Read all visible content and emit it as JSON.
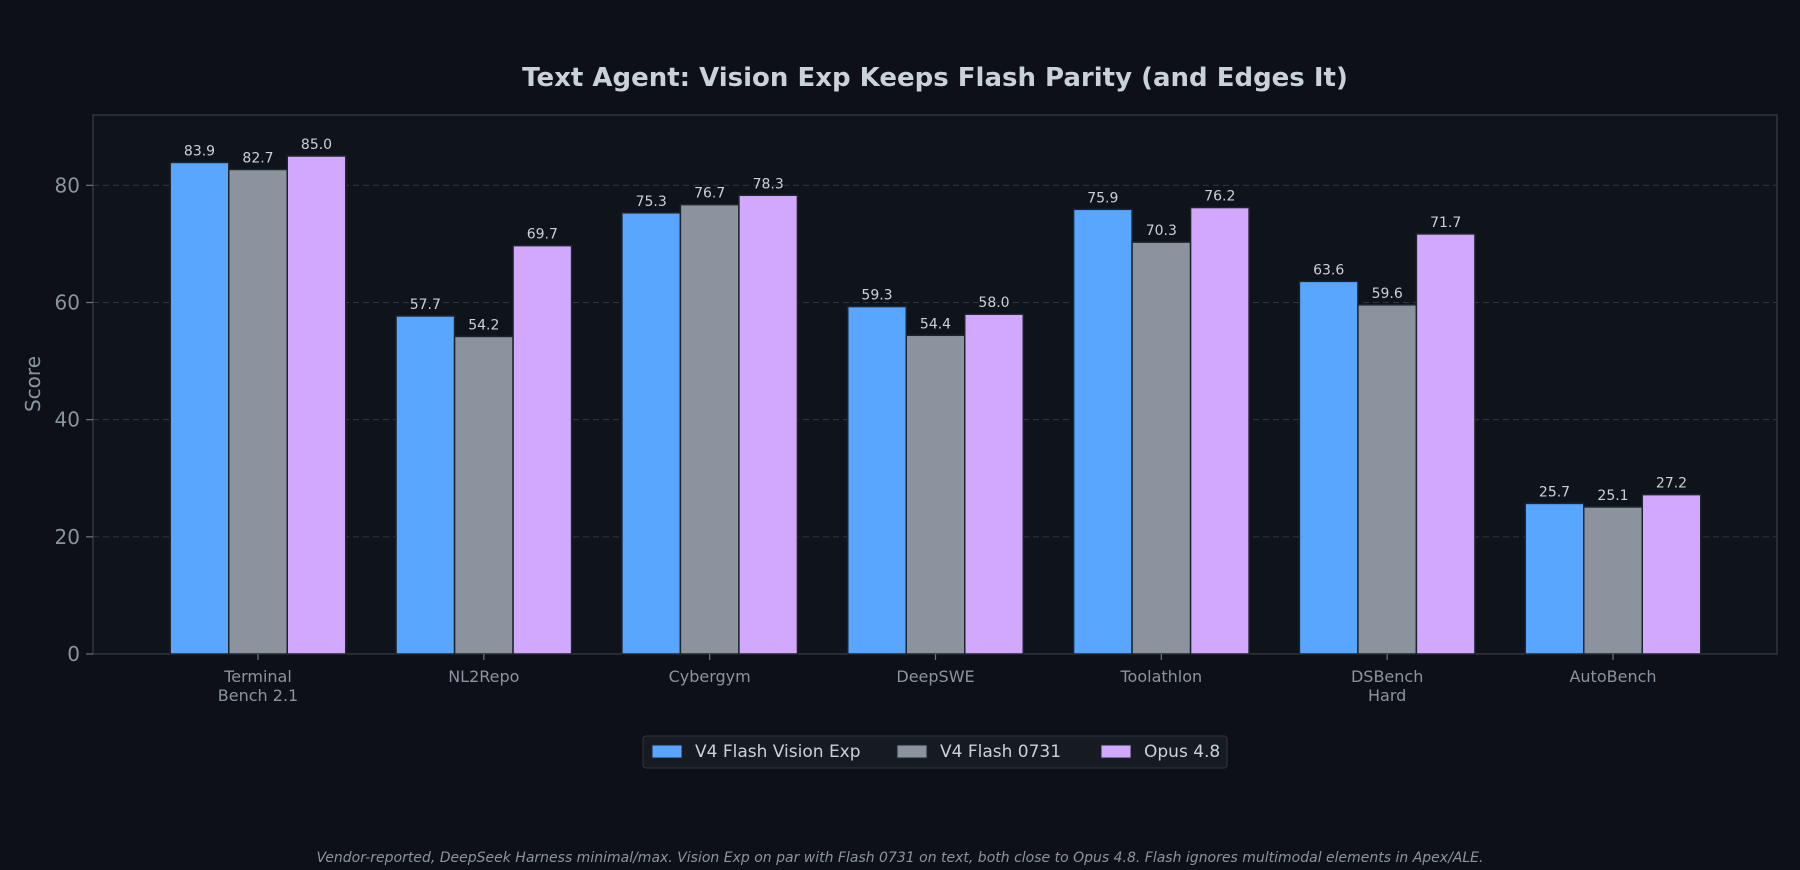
{
  "chart_data": {
    "type": "bar",
    "title": "Text Agent: Vision Exp Keeps Flash Parity (and Edges It)",
    "xlabel": "",
    "ylabel": "Score",
    "ylim": [
      0,
      92
    ],
    "yticks": [
      0,
      20,
      40,
      60,
      80
    ],
    "grid": true,
    "legend_position": "bottom-center",
    "categories": [
      [
        "Terminal",
        "Bench 2.1"
      ],
      [
        "NL2Repo"
      ],
      [
        "Cybergym"
      ],
      [
        "DeepSWE"
      ],
      [
        "Toolathlon"
      ],
      [
        "DSBench",
        "Hard"
      ],
      [
        "AutoBench"
      ]
    ],
    "series": [
      {
        "name": "V4 Flash Vision Exp",
        "color": "#58a6ff",
        "values": [
          83.9,
          57.7,
          75.3,
          59.3,
          75.9,
          63.6,
          25.7
        ]
      },
      {
        "name": "V4 Flash 0731",
        "color": "#8b949e",
        "values": [
          82.7,
          54.2,
          76.7,
          54.4,
          70.3,
          59.6,
          25.1
        ]
      },
      {
        "name": "Opus 4.8",
        "color": "#d2a8ff",
        "values": [
          85.0,
          69.7,
          78.3,
          58.0,
          76.2,
          71.7,
          27.2
        ]
      }
    ],
    "footnote": "Vendor-reported, DeepSeek Harness minimal/max. Vision Exp on par with Flash 0731 on text, both close to Opus 4.8. Flash ignores multimodal elements in Apex/ALE."
  },
  "colors": {
    "background": "#0d1117",
    "plot_background": "#0f141b",
    "axis": "#30363d",
    "grid": "#30363d",
    "bar_edge": "#1f242c"
  }
}
